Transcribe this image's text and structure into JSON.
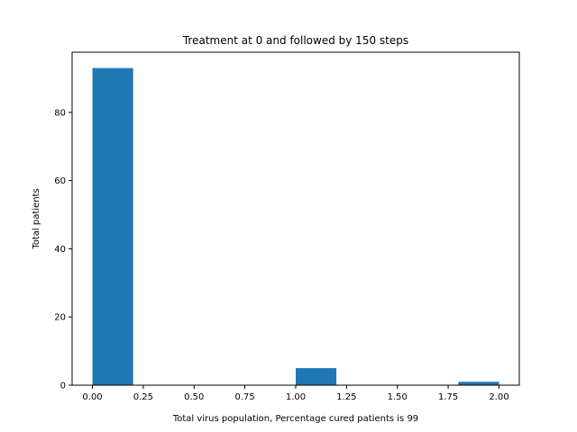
{
  "chart_data": {
    "type": "bar",
    "title": "Treatment at 0 and followed by 150 steps",
    "xlabel": "Total virus population, Percentage cured patients is 99",
    "ylabel": "Total patients",
    "xlim": [
      -0.1,
      2.1
    ],
    "ylim": [
      0,
      97.65
    ],
    "xticks": [
      "0.00",
      "0.25",
      "0.50",
      "0.75",
      "1.00",
      "1.25",
      "1.50",
      "1.75",
      "2.00"
    ],
    "xtick_values": [
      0,
      0.25,
      0.5,
      0.75,
      1.0,
      1.25,
      1.5,
      1.75,
      2.0
    ],
    "yticks": [
      "0",
      "20",
      "40",
      "60",
      "80"
    ],
    "ytick_values": [
      0,
      20,
      40,
      60,
      80
    ],
    "bins": [
      {
        "x_start": 0.0,
        "x_end": 0.2,
        "value": 93
      },
      {
        "x_start": 0.2,
        "x_end": 0.4,
        "value": 0
      },
      {
        "x_start": 0.4,
        "x_end": 0.6,
        "value": 0
      },
      {
        "x_start": 0.6,
        "x_end": 0.8,
        "value": 0
      },
      {
        "x_start": 0.8,
        "x_end": 1.0,
        "value": 0
      },
      {
        "x_start": 1.0,
        "x_end": 1.2,
        "value": 5
      },
      {
        "x_start": 1.2,
        "x_end": 1.4,
        "value": 0
      },
      {
        "x_start": 1.4,
        "x_end": 1.6,
        "value": 0
      },
      {
        "x_start": 1.6,
        "x_end": 1.8,
        "value": 0
      },
      {
        "x_start": 1.8,
        "x_end": 2.0,
        "value": 1
      }
    ],
    "bar_color": "#1f77b4",
    "grid": false,
    "legend": "none"
  }
}
